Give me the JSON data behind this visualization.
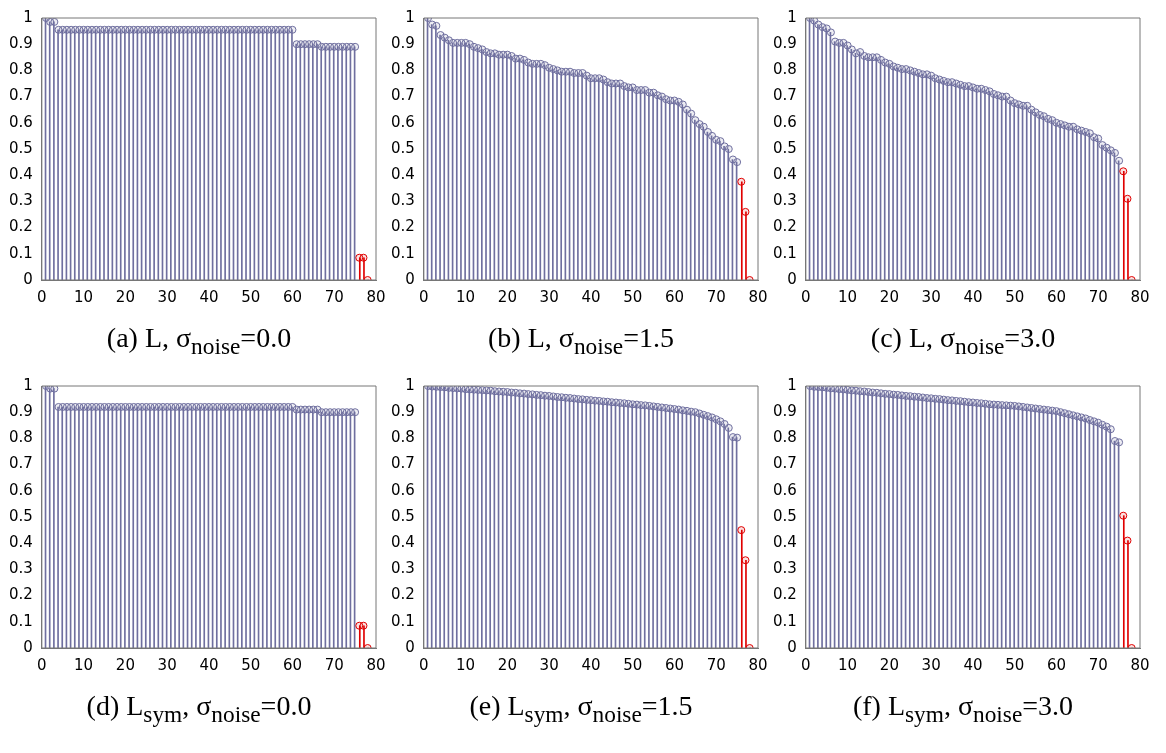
{
  "chart_data": [
    {
      "type": "lollipop",
      "title": "(a) L, σ$_{noise}$=0.0",
      "xlim": [
        0,
        80
      ],
      "xticks": [
        0,
        10,
        20,
        30,
        40,
        50,
        60,
        70,
        80
      ],
      "ylim": [
        0,
        1
      ],
      "yticks": [
        0,
        0.1,
        0.2,
        0.3,
        0.4,
        0.5,
        0.6,
        0.7,
        0.8,
        0.9,
        1
      ],
      "marker": "circle",
      "series": [
        {
          "color": "#6f6f9f",
          "x": [
            1,
            2,
            3,
            4,
            5,
            6,
            7,
            8,
            9,
            10,
            11,
            12,
            13,
            14,
            15,
            16,
            17,
            18,
            19,
            20,
            21,
            22,
            23,
            24,
            25,
            26,
            27,
            28,
            29,
            30,
            31,
            32,
            33,
            34,
            35,
            36,
            37,
            38,
            39,
            40,
            41,
            42,
            43,
            44,
            45,
            46,
            47,
            48,
            49,
            50,
            51,
            52,
            53,
            54,
            55,
            56,
            57,
            58,
            59,
            60,
            61,
            62,
            63,
            64,
            65,
            66,
            67,
            68,
            69,
            70,
            71,
            72,
            73,
            74,
            75
          ],
          "values": [
            1,
            0.985,
            0.985,
            0.955,
            0.955,
            0.955,
            0.955,
            0.955,
            0.955,
            0.955,
            0.955,
            0.955,
            0.955,
            0.955,
            0.955,
            0.955,
            0.955,
            0.955,
            0.955,
            0.955,
            0.955,
            0.955,
            0.955,
            0.955,
            0.955,
            0.955,
            0.955,
            0.955,
            0.955,
            0.955,
            0.955,
            0.955,
            0.955,
            0.955,
            0.955,
            0.955,
            0.955,
            0.955,
            0.955,
            0.955,
            0.955,
            0.955,
            0.955,
            0.955,
            0.955,
            0.955,
            0.955,
            0.955,
            0.955,
            0.955,
            0.955,
            0.955,
            0.955,
            0.955,
            0.955,
            0.955,
            0.955,
            0.955,
            0.955,
            0.955,
            0.9,
            0.9,
            0.9,
            0.9,
            0.9,
            0.9,
            0.89,
            0.89,
            0.89,
            0.89,
            0.89,
            0.89,
            0.89,
            0.89,
            0.89
          ]
        },
        {
          "color": "#e00000",
          "x": [
            76,
            77,
            78
          ],
          "values": [
            0.085,
            0.085,
            0
          ]
        }
      ]
    },
    {
      "type": "lollipop",
      "title": "(b) L, σ$_{noise}$=1.5",
      "xlim": [
        0,
        80
      ],
      "xticks": [
        0,
        10,
        20,
        30,
        40,
        50,
        60,
        70,
        80
      ],
      "ylim": [
        0,
        1
      ],
      "yticks": [
        0,
        0.1,
        0.2,
        0.3,
        0.4,
        0.5,
        0.6,
        0.7,
        0.8,
        0.9,
        1
      ],
      "marker": "circle",
      "series": [
        {
          "color": "#6f6f9f",
          "x": [
            1,
            2,
            3,
            4,
            5,
            6,
            7,
            8,
            9,
            10,
            11,
            12,
            13,
            14,
            15,
            16,
            17,
            18,
            19,
            20,
            21,
            22,
            23,
            24,
            25,
            26,
            27,
            28,
            29,
            30,
            31,
            32,
            33,
            34,
            35,
            36,
            37,
            38,
            39,
            40,
            41,
            42,
            43,
            44,
            45,
            46,
            47,
            48,
            49,
            50,
            51,
            52,
            53,
            54,
            55,
            56,
            57,
            58,
            59,
            60,
            61,
            62,
            63,
            64,
            65,
            66,
            67,
            68,
            69,
            70,
            71,
            72,
            73,
            74,
            75
          ],
          "values": [
            1,
            0.975,
            0.97,
            0.935,
            0.925,
            0.915,
            0.905,
            0.905,
            0.905,
            0.905,
            0.9,
            0.89,
            0.885,
            0.88,
            0.87,
            0.865,
            0.865,
            0.86,
            0.86,
            0.86,
            0.855,
            0.845,
            0.845,
            0.84,
            0.83,
            0.825,
            0.825,
            0.825,
            0.82,
            0.81,
            0.805,
            0.8,
            0.795,
            0.795,
            0.795,
            0.79,
            0.79,
            0.79,
            0.78,
            0.77,
            0.77,
            0.77,
            0.765,
            0.755,
            0.75,
            0.75,
            0.75,
            0.74,
            0.735,
            0.735,
            0.725,
            0.725,
            0.725,
            0.715,
            0.715,
            0.705,
            0.7,
            0.69,
            0.685,
            0.685,
            0.68,
            0.67,
            0.65,
            0.635,
            0.61,
            0.595,
            0.585,
            0.565,
            0.55,
            0.535,
            0.53,
            0.51,
            0.5,
            0.46,
            0.45
          ]
        },
        {
          "color": "#e00000",
          "x": [
            76,
            77,
            78
          ],
          "values": [
            0.375,
            0.26,
            0
          ]
        }
      ]
    },
    {
      "type": "lollipop",
      "title": "(c) L, σ$_{noise}$=3.0",
      "xlim": [
        0,
        80
      ],
      "xticks": [
        0,
        10,
        20,
        30,
        40,
        50,
        60,
        70,
        80
      ],
      "ylim": [
        0,
        1
      ],
      "yticks": [
        0,
        0.1,
        0.2,
        0.3,
        0.4,
        0.5,
        0.6,
        0.7,
        0.8,
        0.9,
        1
      ],
      "marker": "circle",
      "series": [
        {
          "color": "#6f6f9f",
          "x": [
            1,
            2,
            3,
            4,
            5,
            6,
            7,
            8,
            9,
            10,
            11,
            12,
            13,
            14,
            15,
            16,
            17,
            18,
            19,
            20,
            21,
            22,
            23,
            24,
            25,
            26,
            27,
            28,
            29,
            30,
            31,
            32,
            33,
            34,
            35,
            36,
            37,
            38,
            39,
            40,
            41,
            42,
            43,
            44,
            45,
            46,
            47,
            48,
            49,
            50,
            51,
            52,
            53,
            54,
            55,
            56,
            57,
            58,
            59,
            60,
            61,
            62,
            63,
            64,
            65,
            66,
            67,
            68,
            69,
            70,
            71,
            72,
            73,
            74,
            75
          ],
          "values": [
            1,
            0.99,
            0.975,
            0.965,
            0.96,
            0.945,
            0.91,
            0.905,
            0.905,
            0.895,
            0.88,
            0.865,
            0.87,
            0.855,
            0.85,
            0.85,
            0.85,
            0.84,
            0.83,
            0.825,
            0.815,
            0.81,
            0.805,
            0.805,
            0.8,
            0.795,
            0.79,
            0.785,
            0.785,
            0.78,
            0.77,
            0.765,
            0.76,
            0.755,
            0.755,
            0.75,
            0.745,
            0.74,
            0.74,
            0.735,
            0.73,
            0.73,
            0.725,
            0.72,
            0.71,
            0.705,
            0.7,
            0.7,
            0.685,
            0.675,
            0.67,
            0.665,
            0.665,
            0.65,
            0.64,
            0.63,
            0.625,
            0.615,
            0.61,
            0.6,
            0.595,
            0.59,
            0.585,
            0.585,
            0.575,
            0.57,
            0.565,
            0.56,
            0.545,
            0.54,
            0.515,
            0.505,
            0.495,
            0.485,
            0.455
          ]
        },
        {
          "color": "#e00000",
          "x": [
            76,
            77,
            78
          ],
          "values": [
            0.415,
            0.31,
            0
          ]
        }
      ]
    },
    {
      "type": "lollipop",
      "title": "(d) L$_{sym}$, σ$_{noise}$=0.0",
      "xlim": [
        0,
        80
      ],
      "xticks": [
        0,
        10,
        20,
        30,
        40,
        50,
        60,
        70,
        80
      ],
      "ylim": [
        0,
        1
      ],
      "yticks": [
        0,
        0.1,
        0.2,
        0.3,
        0.4,
        0.5,
        0.6,
        0.7,
        0.8,
        0.9,
        1
      ],
      "marker": "circle",
      "series": [
        {
          "color": "#6f6f9f",
          "x": [
            1,
            2,
            3,
            4,
            5,
            6,
            7,
            8,
            9,
            10,
            11,
            12,
            13,
            14,
            15,
            16,
            17,
            18,
            19,
            20,
            21,
            22,
            23,
            24,
            25,
            26,
            27,
            28,
            29,
            30,
            31,
            32,
            33,
            34,
            35,
            36,
            37,
            38,
            39,
            40,
            41,
            42,
            43,
            44,
            45,
            46,
            47,
            48,
            49,
            50,
            51,
            52,
            53,
            54,
            55,
            56,
            57,
            58,
            59,
            60,
            61,
            62,
            63,
            64,
            65,
            66,
            67,
            68,
            69,
            70,
            71,
            72,
            73,
            74,
            75
          ],
          "values": [
            1,
            0.99,
            0.99,
            0.92,
            0.92,
            0.92,
            0.92,
            0.92,
            0.92,
            0.92,
            0.92,
            0.92,
            0.92,
            0.92,
            0.92,
            0.92,
            0.92,
            0.92,
            0.92,
            0.92,
            0.92,
            0.92,
            0.92,
            0.92,
            0.92,
            0.92,
            0.92,
            0.92,
            0.92,
            0.92,
            0.92,
            0.92,
            0.92,
            0.92,
            0.92,
            0.92,
            0.92,
            0.92,
            0.92,
            0.92,
            0.92,
            0.92,
            0.92,
            0.92,
            0.92,
            0.92,
            0.92,
            0.92,
            0.92,
            0.92,
            0.92,
            0.92,
            0.92,
            0.92,
            0.92,
            0.92,
            0.92,
            0.92,
            0.92,
            0.92,
            0.91,
            0.91,
            0.91,
            0.91,
            0.91,
            0.91,
            0.9,
            0.9,
            0.9,
            0.9,
            0.9,
            0.9,
            0.9,
            0.9,
            0.9
          ]
        },
        {
          "color": "#e00000",
          "x": [
            76,
            77,
            78
          ],
          "values": [
            0.085,
            0.085,
            0
          ]
        }
      ]
    },
    {
      "type": "lollipop",
      "title": "(e) L$_{sym}$, σ$_{noise}$=1.5",
      "xlim": [
        0,
        80
      ],
      "xticks": [
        0,
        10,
        20,
        30,
        40,
        50,
        60,
        70,
        80
      ],
      "ylim": [
        0,
        1
      ],
      "yticks": [
        0,
        0.1,
        0.2,
        0.3,
        0.4,
        0.5,
        0.6,
        0.7,
        0.8,
        0.9,
        1
      ],
      "marker": "circle",
      "series": [
        {
          "color": "#6f6f9f",
          "x": [
            1,
            2,
            3,
            4,
            5,
            6,
            7,
            8,
            9,
            10,
            11,
            12,
            13,
            14,
            15,
            16,
            17,
            18,
            19,
            20,
            21,
            22,
            23,
            24,
            25,
            26,
            27,
            28,
            29,
            30,
            31,
            32,
            33,
            34,
            35,
            36,
            37,
            38,
            39,
            40,
            41,
            42,
            43,
            44,
            45,
            46,
            47,
            48,
            49,
            50,
            51,
            52,
            53,
            54,
            55,
            56,
            57,
            58,
            59,
            60,
            61,
            62,
            63,
            64,
            65,
            66,
            67,
            68,
            69,
            70,
            71,
            72,
            73,
            74,
            75
          ],
          "values": [
            1,
            0.998,
            0.997,
            0.996,
            0.995,
            0.993,
            0.992,
            0.991,
            0.99,
            0.988,
            0.987,
            0.986,
            0.985,
            0.984,
            0.983,
            0.982,
            0.98,
            0.979,
            0.978,
            0.977,
            0.975,
            0.974,
            0.972,
            0.971,
            0.969,
            0.968,
            0.966,
            0.965,
            0.963,
            0.962,
            0.96,
            0.958,
            0.957,
            0.955,
            0.954,
            0.952,
            0.95,
            0.949,
            0.947,
            0.946,
            0.944,
            0.943,
            0.941,
            0.94,
            0.938,
            0.937,
            0.935,
            0.934,
            0.932,
            0.93,
            0.929,
            0.927,
            0.926,
            0.924,
            0.922,
            0.92,
            0.918,
            0.916,
            0.914,
            0.912,
            0.91,
            0.907,
            0.905,
            0.902,
            0.9,
            0.895,
            0.89,
            0.885,
            0.88,
            0.873,
            0.865,
            0.855,
            0.84,
            0.805,
            0.803
          ]
        },
        {
          "color": "#e00000",
          "x": [
            76,
            77,
            78
          ],
          "values": [
            0.45,
            0.335,
            0
          ]
        }
      ]
    },
    {
      "type": "lollipop",
      "title": "(f) L$_{sym}$, σ$_{noise}$=3.0",
      "xlim": [
        0,
        80
      ],
      "xticks": [
        0,
        10,
        20,
        30,
        40,
        50,
        60,
        70,
        80
      ],
      "ylim": [
        0,
        1
      ],
      "yticks": [
        0,
        0.1,
        0.2,
        0.3,
        0.4,
        0.5,
        0.6,
        0.7,
        0.8,
        0.9,
        1
      ],
      "marker": "circle",
      "series": [
        {
          "color": "#6f6f9f",
          "x": [
            1,
            2,
            3,
            4,
            5,
            6,
            7,
            8,
            9,
            10,
            11,
            12,
            13,
            14,
            15,
            16,
            17,
            18,
            19,
            20,
            21,
            22,
            23,
            24,
            25,
            26,
            27,
            28,
            29,
            30,
            31,
            32,
            33,
            34,
            35,
            36,
            37,
            38,
            39,
            40,
            41,
            42,
            43,
            44,
            45,
            46,
            47,
            48,
            49,
            50,
            51,
            52,
            53,
            54,
            55,
            56,
            57,
            58,
            59,
            60,
            61,
            62,
            63,
            64,
            65,
            66,
            67,
            68,
            69,
            70,
            71,
            72,
            73,
            74,
            75
          ],
          "values": [
            1,
            0.997,
            0.996,
            0.995,
            0.993,
            0.991,
            0.99,
            0.988,
            0.987,
            0.985,
            0.983,
            0.982,
            0.98,
            0.979,
            0.977,
            0.975,
            0.974,
            0.972,
            0.97,
            0.969,
            0.967,
            0.966,
            0.964,
            0.962,
            0.961,
            0.959,
            0.958,
            0.956,
            0.954,
            0.953,
            0.951,
            0.95,
            0.948,
            0.946,
            0.945,
            0.943,
            0.942,
            0.94,
            0.938,
            0.937,
            0.935,
            0.934,
            0.932,
            0.93,
            0.929,
            0.928,
            0.927,
            0.926,
            0.925,
            0.924,
            0.922,
            0.92,
            0.918,
            0.916,
            0.914,
            0.912,
            0.91,
            0.908,
            0.906,
            0.904,
            0.9,
            0.896,
            0.892,
            0.888,
            0.884,
            0.88,
            0.876,
            0.87,
            0.865,
            0.86,
            0.852,
            0.845,
            0.835,
            0.79,
            0.785
          ]
        },
        {
          "color": "#e00000",
          "x": [
            76,
            77,
            78
          ],
          "values": [
            0.505,
            0.41,
            0
          ]
        }
      ]
    }
  ]
}
